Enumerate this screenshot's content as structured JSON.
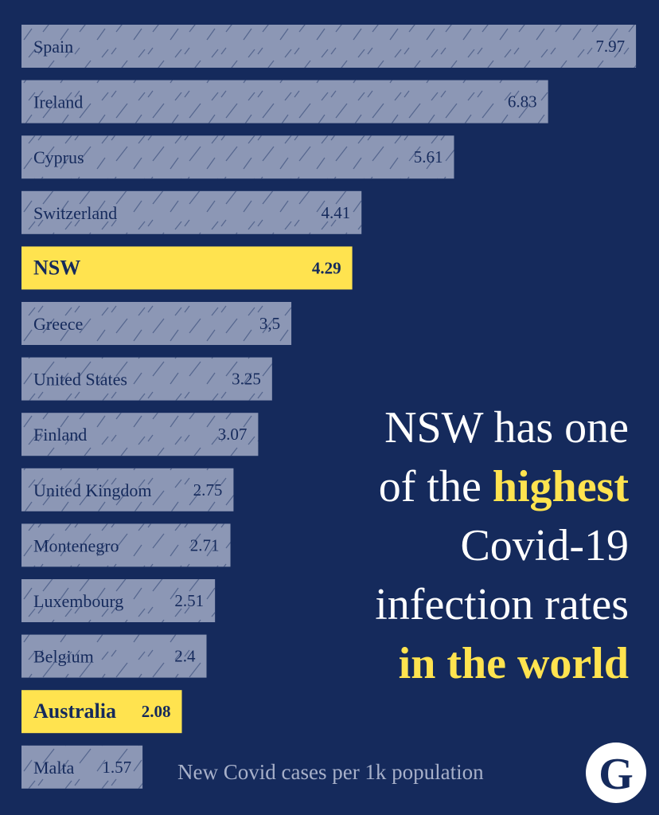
{
  "chart_data": {
    "type": "bar",
    "orientation": "horizontal",
    "title_parts": [
      {
        "text": "NSW has one",
        "color": "#ffffff"
      },
      {
        "text": "of the",
        "color": "#ffffff"
      },
      {
        "text": "highest",
        "color": "#ffe34f"
      },
      {
        "text": "Covid-19",
        "color": "#ffffff"
      },
      {
        "text": "infection rates",
        "color": "#ffffff"
      },
      {
        "text": "in the world",
        "color": "#ffe34f"
      }
    ],
    "subtitle": "New Covid cases per 1k population",
    "logo": "G",
    "categories": [
      "Spain",
      "Ireland",
      "Cyprus",
      "Switzerland",
      "NSW",
      "Greece",
      "United States",
      "Finland",
      "United Kingdom",
      "Montenegro",
      "Luxembourg",
      "Belgium",
      "Australia",
      "Malta"
    ],
    "values": [
      7.97,
      6.83,
      5.61,
      4.41,
      4.29,
      3.5,
      3.25,
      3.07,
      2.75,
      2.71,
      2.51,
      2.4,
      2.08,
      1.57
    ],
    "value_labels": [
      "7.97",
      "6.83",
      "5.61",
      "4.41",
      "4.29",
      "3,5",
      "3.25",
      "3.07",
      "2.75",
      "2.71",
      "2.51",
      "2.4",
      "2.08",
      "1.57"
    ],
    "color": "#8c97b5",
    "colors": [
      "#8c97b5",
      "#8c97b5",
      "#8c97b5",
      "#8c97b5",
      "#ffe34f",
      "#8c97b5",
      "#8c97b5",
      "#8c97b5",
      "#8c97b5",
      "#8c97b5",
      "#8c97b5",
      "#8c97b5",
      "#ffe34f",
      "#8c97b5"
    ],
    "xlim": [
      0,
      8
    ]
  }
}
